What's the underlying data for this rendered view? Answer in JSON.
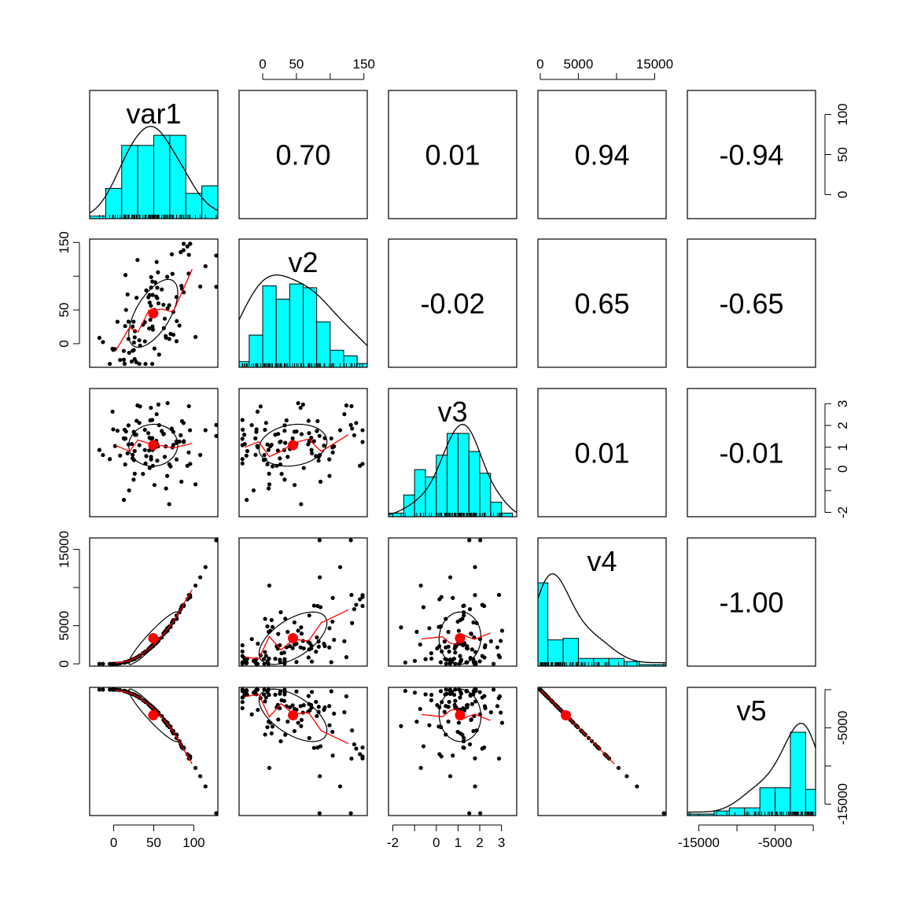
{
  "chart_data": {
    "type": "scatter",
    "title": "",
    "variables": [
      "var1",
      "v2",
      "v3",
      "v4",
      "v5"
    ],
    "colors": {
      "histogram_fill": "#00FFFF",
      "points": "#000000",
      "smooth_line": "#FF0000",
      "centroid": "#FF0000",
      "density_line": "#000000",
      "ellipse": "#000000"
    },
    "axis_ticks": {
      "var1": {
        "labels": [
          "0",
          "50",
          "100"
        ],
        "values": [
          0,
          50,
          100
        ],
        "range": [
          -30,
          130
        ]
      },
      "v2": {
        "labels": [
          "0",
          "50",
          "150"
        ],
        "values": [
          0,
          50,
          150
        ],
        "range": [
          -35,
          155
        ]
      },
      "v3": {
        "labels": [
          "-2",
          "0",
          "1",
          "2",
          "3"
        ],
        "values": [
          -2,
          0,
          1,
          2,
          3
        ],
        "range": [
          -2.2,
          3.7
        ]
      },
      "v4": {
        "labels": [
          "0",
          "5000",
          "15000"
        ],
        "values": [
          0,
          5000,
          15000
        ],
        "range": [
          -300,
          16500
        ]
      },
      "v5": {
        "labels": [
          "-15000",
          "-5000"
        ],
        "values": [
          -15000,
          -5000
        ],
        "range": [
          -16500,
          300
        ]
      }
    },
    "top_axes": [
      {
        "column": 1,
        "var": "v2",
        "ticks": [
          0,
          50,
          100,
          150
        ],
        "labels": [
          "0",
          "50",
          "",
          "150"
        ]
      },
      {
        "column": 3,
        "var": "v4",
        "ticks": [
          0,
          5000,
          10000,
          15000
        ],
        "labels": [
          "0",
          "5000",
          "",
          "15000"
        ]
      }
    ],
    "right_axes": [
      {
        "row": 0,
        "var": "var1",
        "ticks": [
          0,
          50,
          100
        ],
        "labels": [
          "0",
          "50",
          "100"
        ]
      },
      {
        "row": 2,
        "var": "v3",
        "ticks": [
          -2,
          -1,
          0,
          1,
          2,
          3
        ],
        "labels": [
          "-2",
          "",
          "0",
          "1",
          "2",
          "3"
        ]
      },
      {
        "row": 4,
        "var": "v5",
        "ticks": [
          -15000,
          -10000,
          -5000,
          0
        ],
        "labels": [
          "-15000",
          "",
          "-5000",
          ""
        ]
      }
    ],
    "left_axes": [
      {
        "row": 1,
        "var": "v2",
        "ticks": [
          0,
          50,
          100,
          150
        ],
        "labels": [
          "0",
          "50",
          "",
          "150"
        ]
      },
      {
        "row": 3,
        "var": "v4",
        "ticks": [
          0,
          5000,
          10000,
          15000
        ],
        "labels": [
          "0",
          "5000",
          "",
          "15000"
        ]
      }
    ],
    "bottom_axes": [
      {
        "column": 0,
        "var": "var1",
        "ticks": [
          0,
          50,
          100
        ],
        "labels": [
          "0",
          "50",
          "100"
        ]
      },
      {
        "column": 2,
        "var": "v3",
        "ticks": [
          -2,
          -1,
          0,
          1,
          2,
          3
        ],
        "labels": [
          "-2",
          "",
          "0",
          "1",
          "2",
          "3"
        ]
      },
      {
        "column": 4,
        "var": "v5",
        "ticks": [
          -15000,
          -10000,
          -5000,
          0
        ],
        "labels": [
          "-15000",
          "",
          "-5000",
          ""
        ]
      }
    ],
    "correlations": [
      {
        "row": 0,
        "col": 1,
        "value": "0.70"
      },
      {
        "row": 0,
        "col": 2,
        "value": "0.01"
      },
      {
        "row": 0,
        "col": 3,
        "value": "0.94"
      },
      {
        "row": 0,
        "col": 4,
        "value": "-0.94"
      },
      {
        "row": 1,
        "col": 2,
        "value": "-0.02"
      },
      {
        "row": 1,
        "col": 3,
        "value": "0.65"
      },
      {
        "row": 1,
        "col": 4,
        "value": "-0.65"
      },
      {
        "row": 2,
        "col": 3,
        "value": "0.01"
      },
      {
        "row": 2,
        "col": 4,
        "value": "-0.01"
      },
      {
        "row": 3,
        "col": 4,
        "value": "-1.00"
      }
    ],
    "histograms": [
      {
        "var": "var1",
        "breaks": [
          -30,
          -10,
          10,
          30,
          50,
          70,
          90,
          110,
          130
        ],
        "counts": [
          1,
          12,
          29,
          29,
          33,
          33,
          10,
          13
        ]
      },
      {
        "var": "v2",
        "breaks": [
          -40,
          -20,
          0,
          20,
          40,
          60,
          80,
          100,
          120,
          140,
          160
        ],
        "counts": [
          3,
          17,
          43,
          36,
          44,
          42,
          24,
          9,
          6,
          2
        ]
      },
      {
        "var": "v3",
        "breaks": [
          -2.5,
          -2,
          -1.5,
          -1,
          -0.5,
          0,
          0.5,
          1,
          1.5,
          2,
          2.5,
          3,
          3.5
        ],
        "counts": [
          1,
          1,
          6,
          13,
          11,
          17,
          23,
          23,
          18,
          12,
          4,
          1
        ]
      },
      {
        "var": "v4",
        "breaks": [
          -1000,
          1000,
          3000,
          5000,
          7000,
          9000,
          11000,
          13000,
          15000,
          17000
        ],
        "counts": [
          54,
          17,
          18,
          5,
          5,
          5,
          3,
          1,
          1
        ]
      },
      {
        "var": "v5",
        "breaks": [
          -17000,
          -15000,
          -13000,
          -11000,
          -9000,
          -7000,
          -5000,
          -3000,
          -1000,
          1000
        ],
        "counts": [
          1,
          1,
          3,
          5,
          5,
          18,
          18,
          54,
          17
        ]
      }
    ],
    "sample_size": 100
  }
}
